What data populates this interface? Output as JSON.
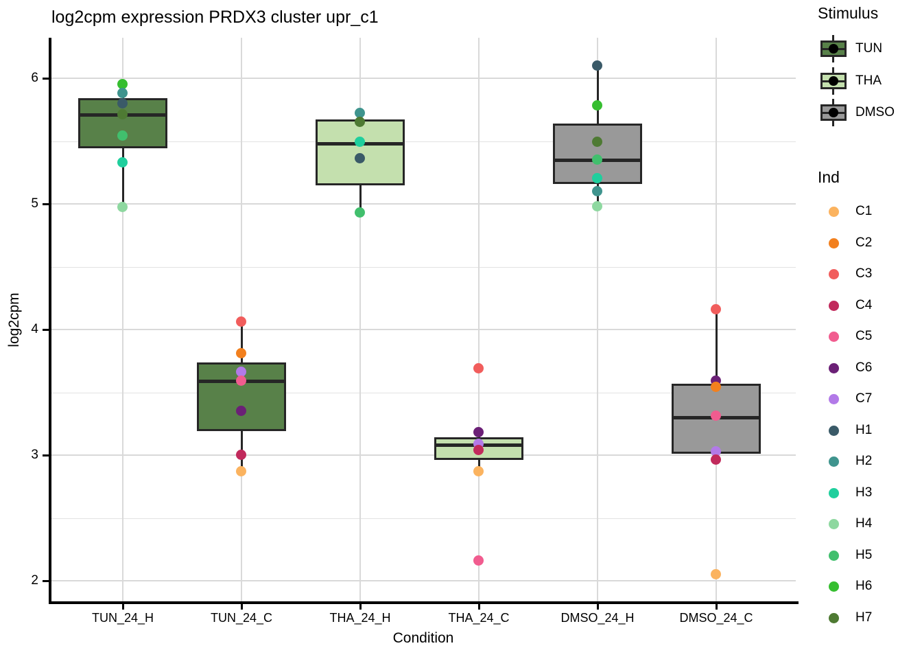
{
  "chart_data": {
    "type": "boxplot",
    "title": "log2cpm expression PRDX3 cluster upr_c1",
    "xlabel": "Condition",
    "ylabel": "log2cpm",
    "ylim": [
      1.8,
      6.3
    ],
    "y_ticks": [
      2,
      3,
      4,
      5,
      6
    ],
    "y_minor_ticks": [
      2.5,
      3.5,
      4.5,
      5.5
    ],
    "grid": "major-and-minor-horizontal, major-vertical",
    "legend_position": "right",
    "categories": [
      "TUN_24_H",
      "TUN_24_C",
      "THA_24_H",
      "THA_24_C",
      "DMSO_24_H",
      "DMSO_24_C"
    ],
    "boxes": [
      {
        "condition": "TUN_24_H",
        "stimulus": "TUN",
        "q1": 5.44,
        "median": 5.71,
        "q3": 5.84,
        "whisker_low": 4.97,
        "whisker_high": 5.95,
        "points": [
          {
            "ind": "H6",
            "value": 5.95
          },
          {
            "ind": "H2",
            "value": 5.88
          },
          {
            "ind": "H1",
            "value": 5.8
          },
          {
            "ind": "H7",
            "value": 5.71
          },
          {
            "ind": "H5",
            "value": 5.54
          },
          {
            "ind": "H3",
            "value": 5.33
          },
          {
            "ind": "H4",
            "value": 4.97
          }
        ]
      },
      {
        "condition": "TUN_24_C",
        "stimulus": "TUN",
        "q1": 3.19,
        "median": 3.59,
        "q3": 3.74,
        "whisker_low": 2.87,
        "whisker_high": 4.06,
        "points": [
          {
            "ind": "C3",
            "value": 4.06
          },
          {
            "ind": "C2",
            "value": 3.81
          },
          {
            "ind": "C7",
            "value": 3.66
          },
          {
            "ind": "C5",
            "value": 3.59
          },
          {
            "ind": "C6",
            "value": 3.35
          },
          {
            "ind": "C4",
            "value": 3.0
          },
          {
            "ind": "C1",
            "value": 2.87
          }
        ]
      },
      {
        "condition": "THA_24_H",
        "stimulus": "THA",
        "q1": 5.15,
        "median": 5.48,
        "q3": 5.67,
        "whisker_low": 4.93,
        "whisker_high": 5.72,
        "points": [
          {
            "ind": "H2",
            "value": 5.72
          },
          {
            "ind": "H7",
            "value": 5.65
          },
          {
            "ind": "H3",
            "value": 5.49
          },
          {
            "ind": "H1",
            "value": 5.36
          },
          {
            "ind": "H5",
            "value": 4.93
          }
        ]
      },
      {
        "condition": "THA_24_C",
        "stimulus": "THA",
        "q1": 2.96,
        "median": 3.08,
        "q3": 3.14,
        "whisker_low": 2.87,
        "whisker_high": 3.18,
        "points": [
          {
            "ind": "C3",
            "value": 3.69
          },
          {
            "ind": "C6",
            "value": 3.18
          },
          {
            "ind": "C7",
            "value": 3.09
          },
          {
            "ind": "C4",
            "value": 3.04
          },
          {
            "ind": "C1",
            "value": 2.87
          },
          {
            "ind": "C5",
            "value": 2.16
          }
        ]
      },
      {
        "condition": "DMSO_24_H",
        "stimulus": "DMSO",
        "q1": 5.16,
        "median": 5.35,
        "q3": 5.64,
        "whisker_low": 4.98,
        "whisker_high": 6.1,
        "points": [
          {
            "ind": "H1",
            "value": 6.1
          },
          {
            "ind": "H6",
            "value": 5.78
          },
          {
            "ind": "H7",
            "value": 5.49
          },
          {
            "ind": "H5",
            "value": 5.35
          },
          {
            "ind": "H3",
            "value": 5.2
          },
          {
            "ind": "H2",
            "value": 5.1
          },
          {
            "ind": "H4",
            "value": 4.98
          }
        ]
      },
      {
        "condition": "DMSO_24_C",
        "stimulus": "DMSO",
        "q1": 3.01,
        "median": 3.3,
        "q3": 3.57,
        "whisker_low": 2.96,
        "whisker_high": 4.16,
        "points": [
          {
            "ind": "C3",
            "value": 4.16
          },
          {
            "ind": "C6",
            "value": 3.59
          },
          {
            "ind": "C2",
            "value": 3.54
          },
          {
            "ind": "C5",
            "value": 3.31
          },
          {
            "ind": "C7",
            "value": 3.03
          },
          {
            "ind": "C4",
            "value": 2.96
          },
          {
            "ind": "C1",
            "value": 2.05
          }
        ]
      }
    ],
    "legend": {
      "stimulus_title": "Stimulus",
      "stimulus": [
        {
          "label": "TUN",
          "fill": "#588149"
        },
        {
          "label": "THA",
          "fill": "#C4E0AE"
        },
        {
          "label": "DMSO",
          "fill": "#999999"
        }
      ],
      "ind_title": "Ind",
      "ind": [
        {
          "label": "C1",
          "color": "#FBB35F"
        },
        {
          "label": "C2",
          "color": "#F2801E"
        },
        {
          "label": "C3",
          "color": "#F15D5C"
        },
        {
          "label": "C4",
          "color": "#C12A5C"
        },
        {
          "label": "C5",
          "color": "#F15C8F"
        },
        {
          "label": "C6",
          "color": "#6B2076"
        },
        {
          "label": "C7",
          "color": "#B27AE8"
        },
        {
          "label": "H1",
          "color": "#3A5A68"
        },
        {
          "label": "H2",
          "color": "#3F948E"
        },
        {
          "label": "H3",
          "color": "#1FCF9D"
        },
        {
          "label": "H4",
          "color": "#8ED8A0"
        },
        {
          "label": "H5",
          "color": "#41BF6D"
        },
        {
          "label": "H6",
          "color": "#36BE30"
        },
        {
          "label": "H7",
          "color": "#4E7A33"
        }
      ]
    },
    "colors": {
      "box_border": "#262626",
      "median_line": "#262626",
      "whisker": "#262626",
      "grid_major": "#D9D9D9",
      "grid_minor": "#E2E2E2",
      "axis_line": "#000000",
      "text": "#000000",
      "background": "#FFFFFF",
      "legend_key_point": "#000000"
    }
  }
}
